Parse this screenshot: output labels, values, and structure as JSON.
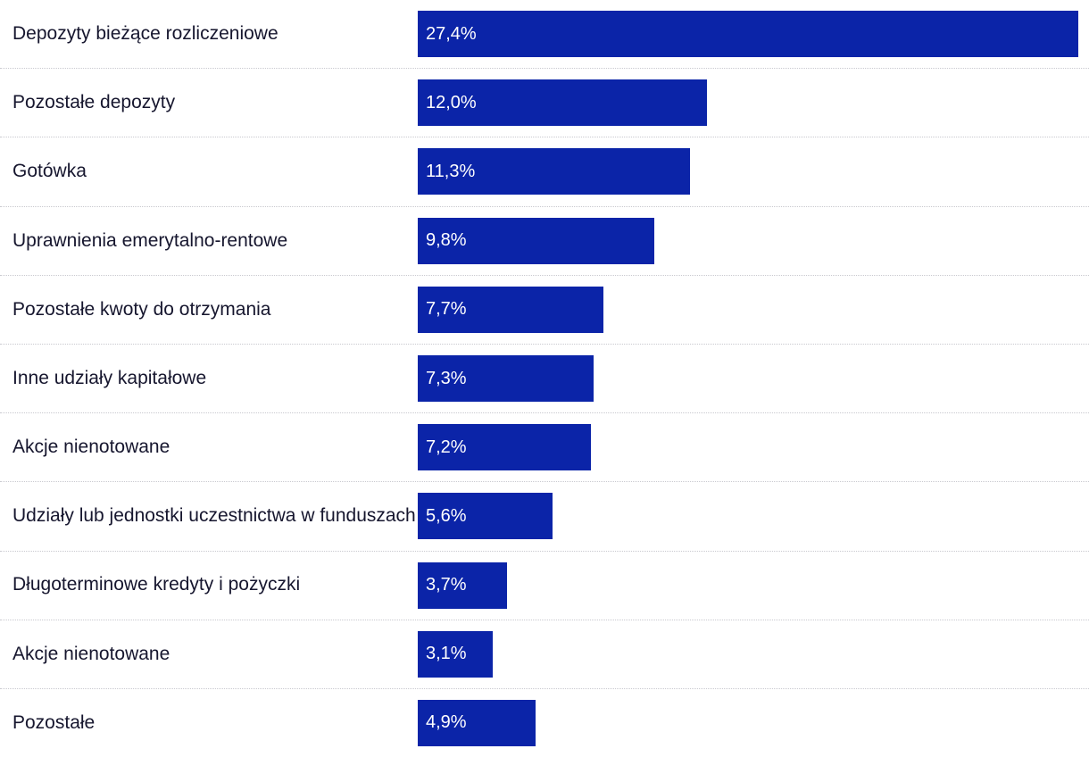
{
  "chart_data": {
    "type": "bar",
    "orientation": "horizontal",
    "title": "",
    "xlabel": "",
    "ylabel": "",
    "legend": false,
    "grid": false,
    "bar_color": "#0b24a8",
    "value_text_color": "#ffffff",
    "label_text_color": "#16162e",
    "separator_style": "dotted",
    "xlim": [
      0,
      27.4
    ],
    "categories": [
      "Depozyty bieżące rozliczeniowe",
      "Pozostałe depozyty",
      "Gotówka",
      "Uprawnienia emerytalno-rentowe",
      "Pozostałe kwoty do otrzymania",
      "Inne udziały kapitałowe",
      "Akcje nienotowane",
      "Udziały lub jednostki uczestnictwa w funduszach",
      "Długoterminowe kredyty i pożyczki",
      "Akcje nienotowane",
      "Pozostałe"
    ],
    "values": [
      27.4,
      12.0,
      11.3,
      9.8,
      7.7,
      7.3,
      7.2,
      5.6,
      3.7,
      3.1,
      4.9
    ],
    "value_labels": [
      "27,4%",
      "12,0%",
      "11,3%",
      "9,8%",
      "7,7%",
      "7,3%",
      "7,2%",
      "5,6%",
      "3,7%",
      "3,1%",
      "4,9%"
    ]
  }
}
